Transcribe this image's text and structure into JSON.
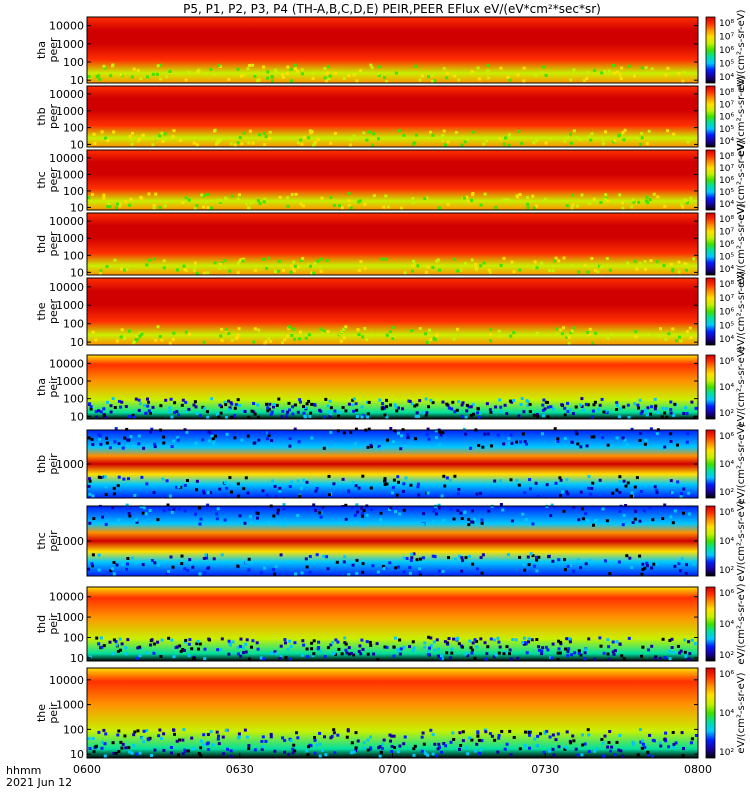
{
  "chart_data": {
    "type": "heatmap",
    "title": "P5, P1, P2, P3, P4 (TH-A,B,C,D,E) PEIR,PEER EFlux eV/(eV*cm²*sec*sr)",
    "x_axis": {
      "label_line1": "hhmm",
      "label_line2": "2021 Jun 12",
      "ticks": [
        "0600",
        "0630",
        "0700",
        "0730",
        "0800"
      ],
      "range": [
        "06:00",
        "08:00"
      ]
    },
    "panels": [
      {
        "probe": "tha",
        "label": [
          "tha",
          "peer"
        ],
        "species": "electrons",
        "yticks": [
          "10",
          "100",
          "1000",
          "10000"
        ],
        "ylim": [
          7,
          30000
        ],
        "log": true,
        "colorbar": {
          "ticks": [
            "10⁴",
            "10⁵",
            "10⁶",
            "10⁷",
            "10⁸"
          ],
          "label": "eV/(cm²-s-sr-eV)"
        }
      },
      {
        "probe": "thb",
        "label": [
          "thb",
          "peer"
        ],
        "species": "electrons",
        "yticks": [
          "10",
          "100",
          "1000",
          "10000"
        ],
        "ylim": [
          7,
          30000
        ],
        "log": true,
        "colorbar": {
          "ticks": [
            "10⁴",
            "10⁵",
            "10⁶",
            "10⁷",
            "10⁸"
          ],
          "label": "eV/(cm²-s-sr-eV)"
        }
      },
      {
        "probe": "thc",
        "label": [
          "thc",
          "peer"
        ],
        "species": "electrons",
        "yticks": [
          "10",
          "100",
          "1000",
          "10000"
        ],
        "ylim": [
          7,
          30000
        ],
        "log": true,
        "colorbar": {
          "ticks": [
            "10⁴",
            "10⁵",
            "10⁶",
            "10⁷",
            "10⁸"
          ],
          "label": "eV/(cm²-s-sr-eV)"
        }
      },
      {
        "probe": "thd",
        "label": [
          "thd",
          "peer"
        ],
        "species": "electrons",
        "yticks": [
          "10",
          "100",
          "1000",
          "10000"
        ],
        "ylim": [
          7,
          30000
        ],
        "log": true,
        "colorbar": {
          "ticks": [
            "10⁴",
            "10⁵",
            "10⁶",
            "10⁷",
            "10⁸"
          ],
          "label": "eV/(cm²-s-sr-eV)"
        }
      },
      {
        "probe": "the",
        "label": [
          "the",
          "peer"
        ],
        "species": "electrons",
        "yticks": [
          "10",
          "100",
          "1000",
          "10000"
        ],
        "ylim": [
          7,
          30000
        ],
        "log": true,
        "colorbar": {
          "ticks": [
            "10⁴",
            "10⁵",
            "10⁶",
            "10⁷",
            "10⁸"
          ],
          "label": "eV/(cm²-s-sr-eV)"
        }
      },
      {
        "probe": "tha",
        "label": [
          "tha",
          "peir"
        ],
        "species": "ions",
        "yticks": [
          "10",
          "100",
          "1000",
          "10000"
        ],
        "ylim": [
          7,
          30000
        ],
        "log": true,
        "colorbar": {
          "ticks": [
            "10²",
            "10⁴",
            "10⁶"
          ],
          "label": "eV/(cm²-s-sr-eV)"
        }
      },
      {
        "probe": "thb",
        "label": [
          "thb",
          "peir"
        ],
        "species": "ions",
        "yticks": [
          "1000"
        ],
        "ylim": [
          200,
          5000
        ],
        "log": true,
        "colorbar": {
          "ticks": [
            "10²",
            "10⁴",
            "10⁶"
          ],
          "label": "eV/(cm²-s-sr-eV)"
        }
      },
      {
        "probe": "thc",
        "label": [
          "thc",
          "peir"
        ],
        "species": "ions",
        "yticks": [
          "1000"
        ],
        "ylim": [
          200,
          5000
        ],
        "log": true,
        "colorbar": {
          "ticks": [
            "10²",
            "10⁴",
            "10⁶"
          ],
          "label": "eV/(cm²-s-sr-eV)"
        }
      },
      {
        "probe": "thd",
        "label": [
          "thd",
          "peir"
        ],
        "species": "ions",
        "yticks": [
          "10",
          "100",
          "1000",
          "10000"
        ],
        "ylim": [
          7,
          30000
        ],
        "log": true,
        "colorbar": {
          "ticks": [
            "10²",
            "10⁴",
            "10⁶"
          ],
          "label": "eV/(cm²-s-sr-eV)"
        }
      },
      {
        "probe": "the",
        "label": [
          "the",
          "peir"
        ],
        "species": "ions",
        "yticks": [
          "10",
          "100",
          "1000",
          "10000"
        ],
        "ylim": [
          7,
          30000
        ],
        "log": true,
        "colorbar": {
          "ticks": [
            "10²",
            "10⁴",
            "10⁶"
          ],
          "label": "eV/(cm²-s-sr-eV)"
        }
      }
    ],
    "colormap": [
      "#000000",
      "#1a00a0",
      "#0020ff",
      "#00c8ff",
      "#00e0a0",
      "#40e000",
      "#c8f000",
      "#ffe000",
      "#ff9000",
      "#ff3000",
      "#d00000"
    ]
  }
}
